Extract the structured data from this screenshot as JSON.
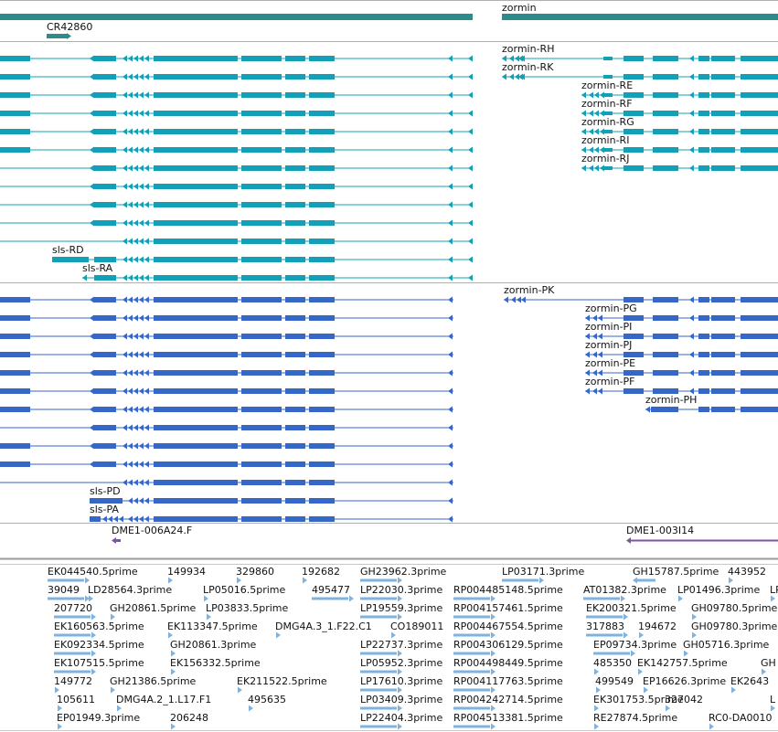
{
  "colors": {
    "gene": "#2e8b8b",
    "transcript_r": "#11a0b6",
    "transcript_p": "#3566c8",
    "dme": "#7b55a8",
    "est": "#7fb3dd",
    "divider": "#9a9a9a"
  },
  "genes": {
    "zormin_label": "zormin",
    "cr_label": "CR42860"
  },
  "transcripts_r": {
    "labels": [
      "zormin-RH",
      "zormin-RK",
      "zormin-RE",
      "zormin-RF",
      "zormin-RG",
      "zormin-RI",
      "zormin-RJ",
      "sls-RD",
      "sls-RA"
    ]
  },
  "transcripts_p": {
    "labels": [
      "zormin-PK",
      "zormin-PG",
      "zormin-PI",
      "zormin-PJ",
      "zormin-PE",
      "zormin-PF",
      "zormin-PH",
      "sls-PD",
      "sls-PA"
    ]
  },
  "clones": {
    "left": "DME1-006A24.F",
    "right": "DME1-003I14"
  },
  "ests": [
    [
      "EK044540.5prime",
      "149934",
      "329860",
      "192682",
      "GH23962.3prime",
      "LP03171.3prime",
      "GH15787.5prime",
      "443952"
    ],
    [
      "39049",
      "LD28564.3prime",
      "LP05016.5prime",
      "495477",
      "LP22030.3prime",
      "RP004485148.5prime",
      "AT01382.3prime",
      "LP01496.3prime",
      "LP"
    ],
    [
      "207720",
      "GH20861.5prime",
      "LP03833.5prime",
      "LP19559.3prime",
      "RP004157461.5prime",
      "EK200321.5prime",
      "GH09780.5prime"
    ],
    [
      "EK160563.5prime",
      "EK113347.5prime",
      "DMG4A.3_1.F22.C1",
      "CO189011",
      "RP004467554.5prime",
      "317883",
      "194672",
      "GH09780.3prime"
    ],
    [
      "EK092334.5prime",
      "GH20861.3prime",
      "LP22737.3prime",
      "RP004306129.5prime",
      "EP09734.3prime",
      "GH05716.3prime"
    ],
    [
      "EK107515.5prime",
      "EK156332.5prime",
      "LP05952.3prime",
      "RP004498449.5prime",
      "485350",
      "EK142757.5prime",
      "GH"
    ],
    [
      "149772",
      "GH21386.5prime",
      "EK211522.5prime",
      "LP17610.3prime",
      "RP004117763.5prime",
      "499549",
      "EP16626.3prime",
      "EK2643"
    ],
    [
      "105611",
      "DMG4A.2_1.L17.F1",
      "495635",
      "LP03409.3prime",
      "RP004242714.5prime",
      "EK301753.5prime",
      "327042",
      "L"
    ],
    [
      "EP01949.3prime",
      "206248",
      "LP22404.3prime",
      "RP004513381.5prime",
      "RE27874.5prime",
      "RC0-DA0010"
    ]
  ]
}
